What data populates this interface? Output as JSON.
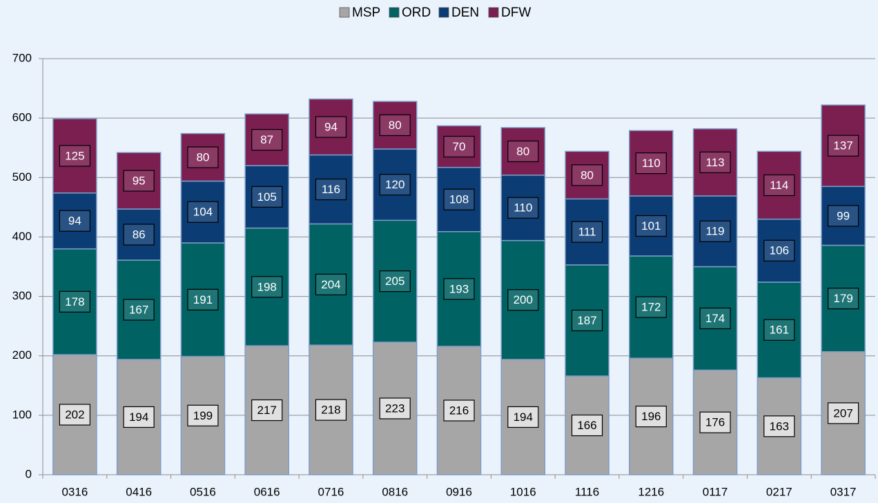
{
  "chart_data": {
    "type": "bar",
    "stacked": true,
    "categories": [
      "0316",
      "0416",
      "0516",
      "0616",
      "0716",
      "0816",
      "0916",
      "1016",
      "1116",
      "1216",
      "0117",
      "0217",
      "0317"
    ],
    "series": [
      {
        "name": "MSP",
        "color": "#a6a6a6",
        "values": [
          202,
          194,
          199,
          217,
          218,
          223,
          216,
          194,
          166,
          196,
          176,
          163,
          207
        ]
      },
      {
        "name": "ORD",
        "color": "#006262",
        "values": [
          178,
          167,
          191,
          198,
          204,
          205,
          193,
          200,
          187,
          172,
          174,
          161,
          179
        ]
      },
      {
        "name": "DEN",
        "color": "#0b3c73",
        "values": [
          94,
          86,
          104,
          105,
          116,
          120,
          108,
          110,
          111,
          101,
          119,
          106,
          99
        ]
      },
      {
        "name": "DFW",
        "color": "#7a1f50",
        "values": [
          125,
          95,
          80,
          87,
          94,
          80,
          70,
          80,
          80,
          110,
          113,
          114,
          137
        ]
      }
    ],
    "ylim": [
      0,
      700
    ],
    "yticks": [
      0,
      100,
      200,
      300,
      400,
      500,
      600,
      700
    ],
    "grid": true,
    "legend": "top"
  }
}
